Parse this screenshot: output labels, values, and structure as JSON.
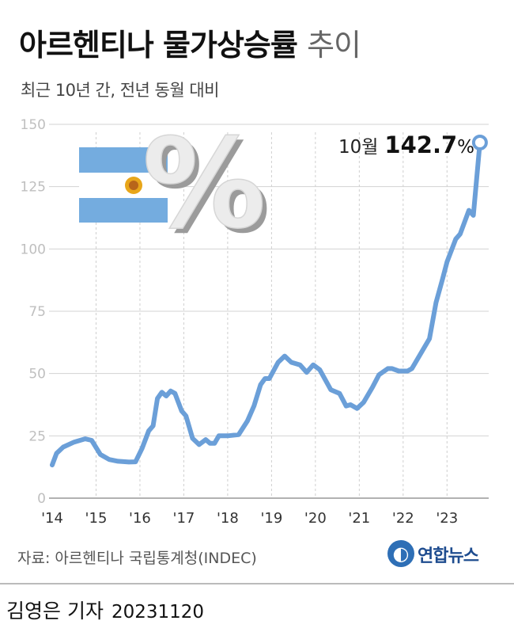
{
  "header": {
    "title_main": "아르헨티나 물가상승률",
    "title_light": "추이",
    "subtitle": "최근 10년 간, 전년 동월 대비"
  },
  "annotation": {
    "month": "10월",
    "value": "142.7",
    "unit": "%"
  },
  "footer": {
    "source": "자료: 아르헨티나 국립통계청(INDEC)",
    "logo_text": "연합뉴스",
    "reporter": "김영은 기자",
    "date": "20231120"
  },
  "colors": {
    "line": "#6b9fd8",
    "flag_blue": "#74acdf",
    "sun": "#e8a61a",
    "grid": "#d3d3d3",
    "axis_text": "#bfbfbf",
    "xtick_text": "#333333"
  },
  "icons": [
    "argentina-flag-icon",
    "percent-icon"
  ],
  "chart_data": {
    "type": "line",
    "ylim": [
      0,
      150
    ],
    "yticks": [
      "0",
      "25",
      "50",
      "75",
      "100",
      "125",
      "150"
    ],
    "xticks": [
      "'14",
      "'15",
      "'16",
      "'17",
      "'18",
      "'19",
      "'20",
      "'21",
      "'22",
      "'23"
    ],
    "grid": "horizontal",
    "series": [
      {
        "points": [
          [
            2014.0,
            13.3
          ],
          [
            2014.1,
            18
          ],
          [
            2014.25,
            20.5
          ],
          [
            2014.5,
            22.5
          ],
          [
            2014.75,
            23.8
          ],
          [
            2014.9,
            23.2
          ],
          [
            2015.1,
            17.5
          ],
          [
            2015.3,
            15.5
          ],
          [
            2015.5,
            14.8
          ],
          [
            2015.75,
            14.5
          ],
          [
            2015.9,
            14.6
          ],
          [
            2016.05,
            20
          ],
          [
            2016.2,
            27
          ],
          [
            2016.3,
            29
          ],
          [
            2016.4,
            40
          ],
          [
            2016.5,
            42.5
          ],
          [
            2016.6,
            41
          ],
          [
            2016.7,
            43
          ],
          [
            2016.8,
            42
          ],
          [
            2016.95,
            35
          ],
          [
            2017.05,
            33
          ],
          [
            2017.2,
            24
          ],
          [
            2017.35,
            21.5
          ],
          [
            2017.5,
            23.5
          ],
          [
            2017.6,
            22
          ],
          [
            2017.7,
            22
          ],
          [
            2017.8,
            25
          ],
          [
            2018.0,
            25
          ],
          [
            2018.25,
            25.5
          ],
          [
            2018.45,
            31
          ],
          [
            2018.6,
            37
          ],
          [
            2018.75,
            45.5
          ],
          [
            2018.85,
            48
          ],
          [
            2018.95,
            48
          ],
          [
            2019.15,
            54.5
          ],
          [
            2019.3,
            57
          ],
          [
            2019.45,
            54.5
          ],
          [
            2019.65,
            53.5
          ],
          [
            2019.8,
            50.5
          ],
          [
            2019.95,
            53.5
          ],
          [
            2020.1,
            51.5
          ],
          [
            2020.35,
            43.5
          ],
          [
            2020.55,
            42
          ],
          [
            2020.7,
            37
          ],
          [
            2020.8,
            37.5
          ],
          [
            2020.95,
            36
          ],
          [
            2021.1,
            38.5
          ],
          [
            2021.3,
            44.5
          ],
          [
            2021.45,
            49.5
          ],
          [
            2021.65,
            52
          ],
          [
            2021.75,
            52
          ],
          [
            2021.9,
            51
          ],
          [
            2022.1,
            51
          ],
          [
            2022.2,
            52
          ],
          [
            2022.4,
            58
          ],
          [
            2022.6,
            64
          ],
          [
            2022.75,
            78.5
          ],
          [
            2022.9,
            88
          ],
          [
            2023.0,
            94.8
          ],
          [
            2023.2,
            104
          ],
          [
            2023.3,
            106
          ],
          [
            2023.5,
            115.5
          ],
          [
            2023.6,
            113.5
          ],
          [
            2023.75,
            142.7
          ]
        ]
      }
    ]
  }
}
